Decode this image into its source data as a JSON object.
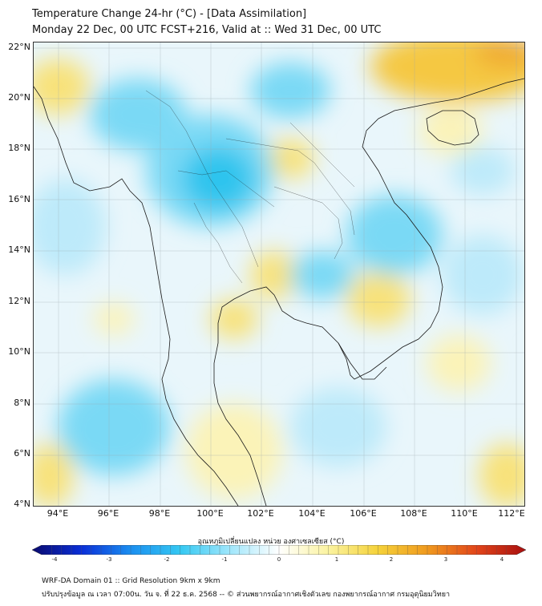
{
  "title": {
    "line1": "Temperature Change 24-hr (°C) - [Data Assimilation]",
    "line2": "Monday 22 Dec, 00 UTC FCST+216, Valid at :: Wed 31 Dec, 00 UTC"
  },
  "map": {
    "lat_labels": [
      "22°N",
      "20°N",
      "18°N",
      "16°N",
      "14°N",
      "12°N",
      "10°N",
      "8°N",
      "6°N",
      "4°N"
    ],
    "lon_labels": [
      "94°E",
      "96°E",
      "98°E",
      "100°E",
      "102°E",
      "104°E",
      "106°E",
      "108°E",
      "110°E",
      "112°E"
    ],
    "colors": {
      "ocean_base": "#e9f6fb",
      "cool_strong": "#2fc4ee",
      "cool_mid": "#7ad9f5",
      "cool_light": "#bdeafa",
      "warm_light": "#fbf3b8",
      "warm_mid": "#f8e27a",
      "warm_strong": "#f5c842",
      "warm_orange": "#f0a92e",
      "coastline": "#1a1a1a"
    }
  },
  "colorbar": {
    "label": "อุณหภูมิเปลี่ยนแปลง หน่วย องศาเซลเซียส (°C)",
    "ticks": [
      "-4",
      "-3",
      "-2",
      "-1",
      "0",
      "1",
      "2",
      "3",
      "4"
    ],
    "stops": [
      "#0a0a6e",
      "#0a2fd8",
      "#1b8ff0",
      "#35c8f2",
      "#9fe6fb",
      "#ffffff",
      "#fbf3a0",
      "#f5d23a",
      "#f09a1e",
      "#e2451a",
      "#a80f0f"
    ]
  },
  "footer": {
    "line1": "WRF-DA Domain 01 :: Grid Resolution 9km x 9km",
    "line2": "ปรับปรุงข้อมูล ณ เวลา 07:00น. วัน จ. ที่ 22 ธ.ค. 2568 -- © ส่วนพยากรณ์อากาศเชิงตัวเลข กองพยากรณ์อากาศ กรมอุตุนิยมวิทยา"
  }
}
